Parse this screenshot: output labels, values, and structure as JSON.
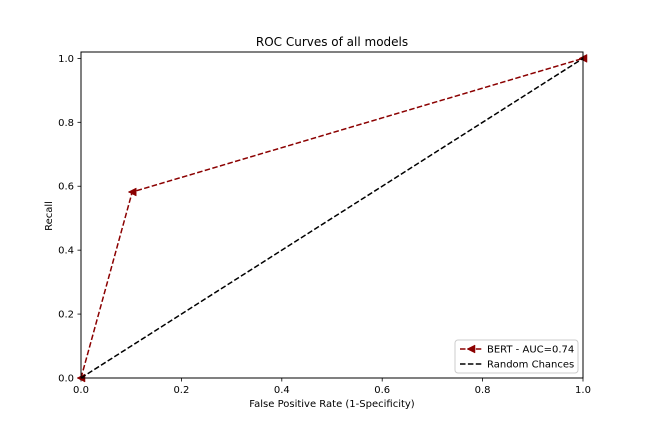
{
  "chart_data": {
    "type": "line",
    "title": "ROC Curves of all models",
    "xlabel": "False Positive Rate (1-Specificity)",
    "ylabel": "Recall",
    "xlim": [
      0,
      1
    ],
    "ylim": [
      0,
      1.02
    ],
    "grid": false,
    "legend_placement": "lower-right",
    "x_ticks": [
      {
        "value": 0,
        "label": "0.0"
      },
      {
        "value": 0.2,
        "label": "0.2"
      },
      {
        "value": 0.4,
        "label": "0.4"
      },
      {
        "value": 0.6,
        "label": "0.6"
      },
      {
        "value": 0.8,
        "label": "0.8"
      },
      {
        "value": 1,
        "label": "1.0"
      }
    ],
    "y_ticks": [
      {
        "value": 0,
        "label": "0.0"
      },
      {
        "value": 0.2,
        "label": "0.2"
      },
      {
        "value": 0.4,
        "label": "0.4"
      },
      {
        "value": 0.6,
        "label": "0.6"
      },
      {
        "value": 0.8,
        "label": "0.8"
      },
      {
        "value": 1,
        "label": "1.0"
      }
    ],
    "series": [
      {
        "name": "BERT - AUC=0.74",
        "color": "#8b0000",
        "line_style": "dashed",
        "marker": "triangle-left",
        "x": [
          0,
          0.102,
          1
        ],
        "y": [
          0,
          0.582,
          1
        ]
      },
      {
        "name": "Random Chances",
        "color": "#000000",
        "line_style": "dashed",
        "marker": "none",
        "x": [
          0,
          1
        ],
        "y": [
          0,
          1
        ]
      }
    ]
  }
}
